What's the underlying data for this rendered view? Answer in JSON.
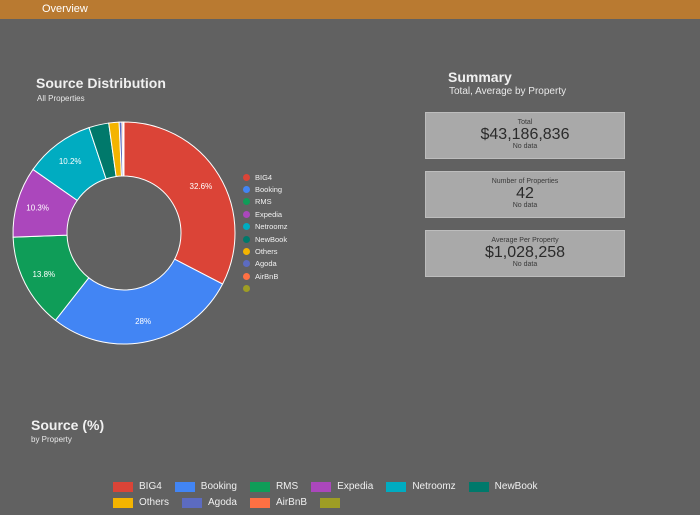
{
  "topbar": {
    "tab_label": "Overview"
  },
  "donut": {
    "title": "Source Distribution",
    "subtitle": "All Properties"
  },
  "summary": {
    "title": "Summary",
    "subtitle": "Total, Average by Property",
    "cards": {
      "total": {
        "label": "Total",
        "value": "$43,186,836",
        "note": "No data"
      },
      "properties": {
        "label": "Number of Properties",
        "value": "42",
        "note": "No data"
      },
      "average": {
        "label": "Average Per Property",
        "value": "$1,028,258",
        "note": "No data"
      }
    }
  },
  "source_section": {
    "title": "Source (%)",
    "subtitle": "by Property"
  },
  "colors": {
    "BIG4": "#db4437",
    "Booking": "#4285f4",
    "RMS": "#0f9d58",
    "Expedia": "#ab47bc",
    "Netroomz": "#00acc1",
    "NewBook": "#00796b",
    "Others": "#f4b400",
    "Agoda": "#5c6bc0",
    "AirBnB": "#ff7043",
    "unlabeled": "#9e9d24"
  },
  "chart_data": {
    "type": "pie",
    "donut": true,
    "title": "Source Distribution",
    "subtitle": "All Properties",
    "legend_position": "right",
    "slices": [
      {
        "label": "BIG4",
        "value": 32.6,
        "data_label": "32.6%"
      },
      {
        "label": "Booking",
        "value": 28.0,
        "data_label": "28%"
      },
      {
        "label": "RMS",
        "value": 13.8,
        "data_label": "13.8%"
      },
      {
        "label": "Expedia",
        "value": 10.3,
        "data_label": "10.3%"
      },
      {
        "label": "Netroomz",
        "value": 10.2,
        "data_label": "10.2%"
      },
      {
        "label": "NewBook",
        "value": 2.9,
        "data_label": ""
      },
      {
        "label": "Others",
        "value": 1.5,
        "data_label": ""
      },
      {
        "label": "Agoda",
        "value": 0.4,
        "data_label": ""
      },
      {
        "label": "AirBnB",
        "value": 0.2,
        "data_label": ""
      },
      {
        "label": "",
        "value": 0.1,
        "data_label": ""
      }
    ]
  },
  "legend_h": [
    {
      "label": "BIG4",
      "color": "#db4437"
    },
    {
      "label": "Booking",
      "color": "#4285f4"
    },
    {
      "label": "RMS",
      "color": "#0f9d58"
    },
    {
      "label": "Expedia",
      "color": "#ab47bc"
    },
    {
      "label": "Netroomz",
      "color": "#00acc1"
    },
    {
      "label": "NewBook",
      "color": "#00796b"
    },
    {
      "label": "Others",
      "color": "#f4b400"
    },
    {
      "label": "Agoda",
      "color": "#5c6bc0"
    },
    {
      "label": "AirBnB",
      "color": "#ff7043"
    },
    {
      "label": "",
      "color": "#9e9d24"
    }
  ]
}
